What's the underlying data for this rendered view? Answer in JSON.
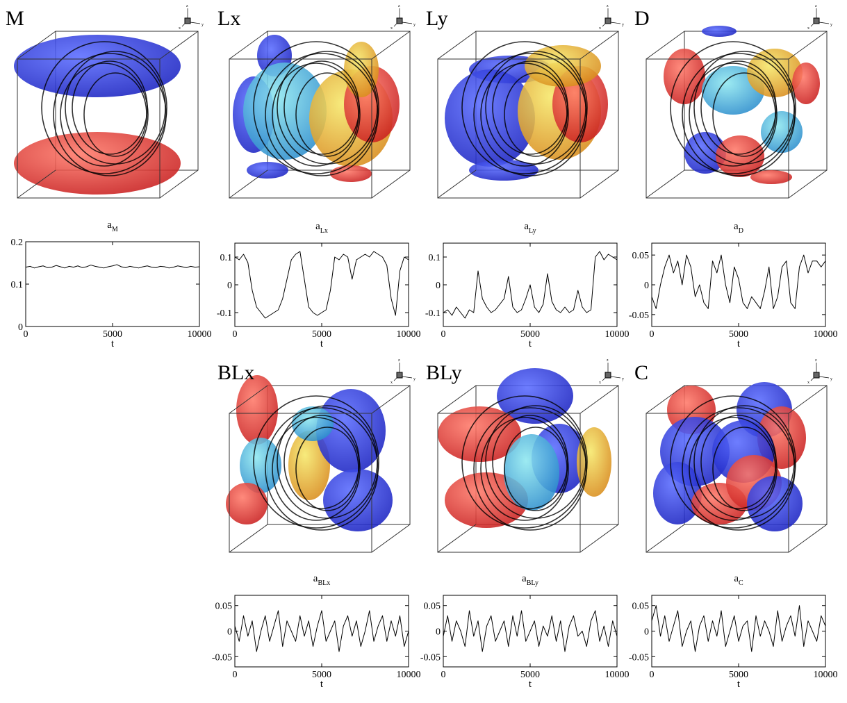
{
  "panels": [
    {
      "label": "M"
    },
    {
      "label": "Lx"
    },
    {
      "label": "Ly"
    },
    {
      "label": "D"
    },
    {
      "label": "BLx"
    },
    {
      "label": "BLy"
    },
    {
      "label": "C"
    }
  ],
  "triad_labels": [
    "z",
    "x",
    "y"
  ],
  "chart_data": [
    {
      "type": "line",
      "title": "a",
      "subscript": "M",
      "xlabel": "t",
      "color": "#000000",
      "x": [
        0,
        250,
        500,
        750,
        1000,
        1250,
        1500,
        1750,
        2000,
        2250,
        2500,
        2750,
        3000,
        3250,
        3500,
        3750,
        4000,
        4250,
        4500,
        4750,
        5000,
        5250,
        5500,
        5750,
        6000,
        6250,
        6500,
        6750,
        7000,
        7250,
        7500,
        7750,
        8000,
        8250,
        8500,
        8750,
        9000,
        9250,
        9500,
        9750,
        10000
      ],
      "values": [
        0.14,
        0.142,
        0.138,
        0.141,
        0.143,
        0.139,
        0.14,
        0.144,
        0.141,
        0.138,
        0.142,
        0.14,
        0.143,
        0.139,
        0.141,
        0.145,
        0.142,
        0.14,
        0.138,
        0.141,
        0.143,
        0.146,
        0.141,
        0.139,
        0.142,
        0.14,
        0.138,
        0.141,
        0.143,
        0.14,
        0.139,
        0.142,
        0.141,
        0.138,
        0.14,
        0.143,
        0.141,
        0.139,
        0.142,
        0.14,
        0.141
      ],
      "xlim": [
        0,
        10000
      ],
      "xticks": [
        0,
        5000,
        10000
      ],
      "ylim": [
        0,
        0.2
      ],
      "yticks": [
        0,
        0.1,
        0.2
      ]
    },
    {
      "type": "line",
      "title": "a",
      "subscript": "Lx",
      "xlabel": "t",
      "color": "#000000",
      "x": [
        0,
        250,
        500,
        750,
        1000,
        1250,
        1500,
        1750,
        2000,
        2250,
        2500,
        2750,
        3000,
        3250,
        3500,
        3750,
        4000,
        4250,
        4500,
        4750,
        5000,
        5250,
        5500,
        5750,
        6000,
        6250,
        6500,
        6750,
        7000,
        7250,
        7500,
        7750,
        8000,
        8250,
        8500,
        8750,
        9000,
        9250,
        9500,
        9750,
        10000
      ],
      "values": [
        0.1,
        0.09,
        0.11,
        0.08,
        -0.02,
        -0.08,
        -0.1,
        -0.12,
        -0.11,
        -0.1,
        -0.09,
        -0.05,
        0.02,
        0.09,
        0.11,
        0.12,
        0.02,
        -0.08,
        -0.1,
        -0.11,
        -0.1,
        -0.09,
        -0.02,
        0.1,
        0.09,
        0.11,
        0.1,
        0.02,
        0.09,
        0.1,
        0.11,
        0.1,
        0.12,
        0.11,
        0.1,
        0.07,
        -0.05,
        -0.11,
        0.05,
        0.1,
        0.09
      ],
      "xlim": [
        0,
        10000
      ],
      "xticks": [
        0,
        5000,
        10000
      ],
      "ylim": [
        -0.15,
        0.15
      ],
      "yticks": [
        -0.1,
        0,
        0.1
      ]
    },
    {
      "type": "line",
      "title": "a",
      "subscript": "Ly",
      "xlabel": "t",
      "color": "#000000",
      "x": [
        0,
        250,
        500,
        750,
        1000,
        1250,
        1500,
        1750,
        2000,
        2250,
        2500,
        2750,
        3000,
        3250,
        3500,
        3750,
        4000,
        4250,
        4500,
        4750,
        5000,
        5250,
        5500,
        5750,
        6000,
        6250,
        6500,
        6750,
        7000,
        7250,
        7500,
        7750,
        8000,
        8250,
        8500,
        8750,
        9000,
        9250,
        9500,
        9750,
        10000
      ],
      "values": [
        -0.1,
        -0.09,
        -0.11,
        -0.08,
        -0.1,
        -0.12,
        -0.09,
        -0.1,
        0.05,
        -0.05,
        -0.08,
        -0.1,
        -0.09,
        -0.07,
        -0.05,
        0.03,
        -0.08,
        -0.1,
        -0.09,
        -0.05,
        0.0,
        -0.08,
        -0.1,
        -0.07,
        0.04,
        -0.06,
        -0.09,
        -0.1,
        -0.08,
        -0.1,
        -0.09,
        -0.02,
        -0.08,
        -0.1,
        -0.09,
        0.1,
        0.12,
        0.09,
        0.11,
        0.1,
        0.09
      ],
      "xlim": [
        0,
        10000
      ],
      "xticks": [
        0,
        5000,
        10000
      ],
      "ylim": [
        -0.15,
        0.15
      ],
      "yticks": [
        -0.1,
        0,
        0.1
      ]
    },
    {
      "type": "line",
      "title": "a",
      "subscript": "D",
      "xlabel": "t",
      "color": "#000000",
      "x": [
        0,
        250,
        500,
        750,
        1000,
        1250,
        1500,
        1750,
        2000,
        2250,
        2500,
        2750,
        3000,
        3250,
        3500,
        3750,
        4000,
        4250,
        4500,
        4750,
        5000,
        5250,
        5500,
        5750,
        6000,
        6250,
        6500,
        6750,
        7000,
        7250,
        7500,
        7750,
        8000,
        8250,
        8500,
        8750,
        9000,
        9250,
        9500,
        9750,
        10000
      ],
      "values": [
        -0.02,
        -0.04,
        0.0,
        0.03,
        0.05,
        0.02,
        0.04,
        0.0,
        0.05,
        0.03,
        -0.02,
        0.0,
        -0.03,
        -0.04,
        0.04,
        0.02,
        0.05,
        0.0,
        -0.03,
        0.03,
        0.01,
        -0.03,
        -0.04,
        -0.02,
        -0.03,
        -0.04,
        -0.01,
        0.03,
        -0.04,
        -0.02,
        0.03,
        0.04,
        -0.03,
        -0.04,
        0.03,
        0.05,
        0.02,
        0.04,
        0.04,
        0.03,
        0.04
      ],
      "xlim": [
        0,
        10000
      ],
      "xticks": [
        0,
        5000,
        10000
      ],
      "ylim": [
        -0.07,
        0.07
      ],
      "yticks": [
        -0.05,
        0,
        0.05
      ]
    },
    {
      "type": "line",
      "title": "a",
      "subscript": "BLx",
      "xlabel": "t",
      "color": "#000000",
      "x": [
        0,
        250,
        500,
        750,
        1000,
        1250,
        1500,
        1750,
        2000,
        2250,
        2500,
        2750,
        3000,
        3250,
        3500,
        3750,
        4000,
        4250,
        4500,
        4750,
        5000,
        5250,
        5500,
        5750,
        6000,
        6250,
        6500,
        6750,
        7000,
        7250,
        7500,
        7750,
        8000,
        8250,
        8500,
        8750,
        9000,
        9250,
        9500,
        9750,
        10000
      ],
      "values": [
        0.01,
        -0.02,
        0.03,
        -0.01,
        0.02,
        -0.04,
        0.0,
        0.03,
        -0.02,
        0.01,
        0.04,
        -0.03,
        0.02,
        0.0,
        -0.02,
        0.03,
        -0.01,
        0.02,
        -0.03,
        0.01,
        0.04,
        -0.02,
        0.0,
        0.02,
        -0.04,
        0.01,
        0.03,
        -0.01,
        0.02,
        -0.03,
        0.0,
        0.04,
        -0.02,
        0.01,
        0.03,
        -0.02,
        0.02,
        -0.01,
        0.03,
        -0.03,
        0.0
      ],
      "xlim": [
        0,
        10000
      ],
      "xticks": [
        0,
        5000,
        10000
      ],
      "ylim": [
        -0.07,
        0.07
      ],
      "yticks": [
        -0.05,
        0,
        0.05
      ]
    },
    {
      "type": "line",
      "title": "a",
      "subscript": "BLy",
      "xlabel": "t",
      "color": "#000000",
      "x": [
        0,
        250,
        500,
        750,
        1000,
        1250,
        1500,
        1750,
        2000,
        2250,
        2500,
        2750,
        3000,
        3250,
        3500,
        3750,
        4000,
        4250,
        4500,
        4750,
        5000,
        5250,
        5500,
        5750,
        6000,
        6250,
        6500,
        6750,
        7000,
        7250,
        7500,
        7750,
        8000,
        8250,
        8500,
        8750,
        9000,
        9250,
        9500,
        9750,
        10000
      ],
      "values": [
        -0.01,
        0.03,
        -0.02,
        0.02,
        0.0,
        -0.03,
        0.04,
        -0.01,
        0.02,
        -0.04,
        0.01,
        0.03,
        -0.02,
        0.0,
        0.02,
        -0.03,
        0.03,
        -0.01,
        0.04,
        -0.02,
        0.0,
        0.02,
        -0.03,
        0.01,
        -0.01,
        0.03,
        -0.02,
        0.02,
        -0.04,
        0.01,
        0.03,
        -0.01,
        0.0,
        -0.03,
        0.02,
        0.04,
        -0.02,
        0.01,
        -0.03,
        0.02,
        -0.01
      ],
      "xlim": [
        0,
        10000
      ],
      "xticks": [
        0,
        5000,
        10000
      ],
      "ylim": [
        -0.07,
        0.07
      ],
      "yticks": [
        -0.05,
        0,
        0.05
      ]
    },
    {
      "type": "line",
      "title": "a",
      "subscript": "C",
      "xlabel": "t",
      "color": "#000000",
      "x": [
        0,
        250,
        500,
        750,
        1000,
        1250,
        1500,
        1750,
        2000,
        2250,
        2500,
        2750,
        3000,
        3250,
        3500,
        3750,
        4000,
        4250,
        4500,
        4750,
        5000,
        5250,
        5500,
        5750,
        6000,
        6250,
        6500,
        6750,
        7000,
        7250,
        7500,
        7750,
        8000,
        8250,
        8500,
        8750,
        9000,
        9250,
        9500,
        9750,
        10000
      ],
      "values": [
        0.02,
        0.05,
        -0.01,
        0.03,
        -0.02,
        0.01,
        0.04,
        -0.03,
        0.0,
        0.02,
        -0.04,
        0.01,
        0.03,
        -0.02,
        0.02,
        -0.01,
        0.04,
        -0.03,
        0.0,
        0.03,
        -0.02,
        0.01,
        0.02,
        -0.04,
        0.03,
        -0.01,
        0.02,
        0.0,
        -0.03,
        0.04,
        -0.02,
        0.01,
        0.03,
        -0.01,
        0.05,
        -0.03,
        0.02,
        0.0,
        -0.02,
        0.03,
        0.01
      ],
      "xlim": [
        0,
        10000
      ],
      "xticks": [
        0,
        5000,
        10000
      ],
      "ylim": [
        -0.07,
        0.07
      ],
      "yticks": [
        -0.05,
        0,
        0.05
      ]
    }
  ]
}
